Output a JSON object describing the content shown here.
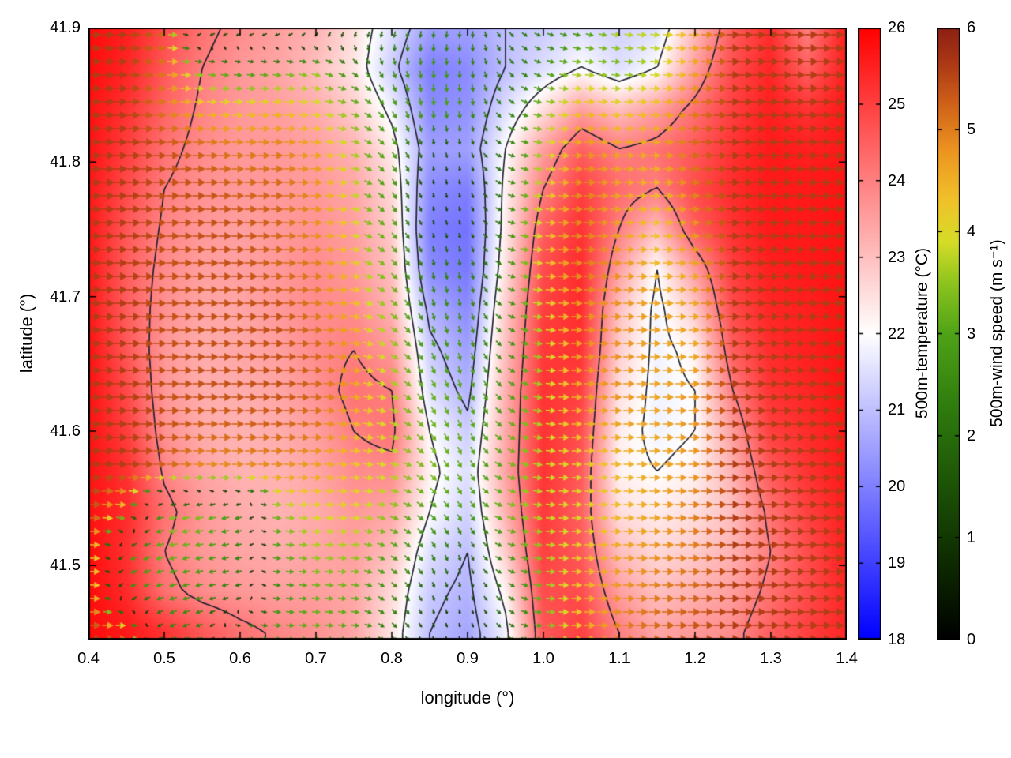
{
  "chart_data": {
    "type": "heatmap",
    "overlays": [
      "quiver",
      "contour"
    ],
    "title": "",
    "xlabel": "longitude (°)",
    "ylabel": "latitude (°)",
    "xlim": [
      0.4,
      1.4
    ],
    "ylim": [
      41.445,
      41.9
    ],
    "x_tick_labels": [
      "0.4",
      "0.5",
      "0.6",
      "0.7",
      "0.8",
      "0.9",
      "1.0",
      "1.1",
      "1.2",
      "1.3",
      "1.4"
    ],
    "y_tick_labels": [
      "41.5",
      "41.6",
      "41.7",
      "41.8",
      "41.9"
    ],
    "grid": {
      "lon_start": 0.4,
      "lon_step": 0.05,
      "ncols": 21,
      "lat_start": 41.9,
      "lat_step": -0.03,
      "nrows": 16
    },
    "contour_levels": [
      21,
      22,
      24
    ],
    "temperature": [
      [
        25.8,
        25.5,
        24.8,
        24.2,
        23.8,
        23.5,
        23.2,
        22.5,
        21.5,
        20.5,
        20.5,
        21.0,
        21.2,
        21.5,
        21.3,
        21.5,
        23.0,
        24.5,
        25.3,
        24.0,
        25.5
      ],
      [
        25.8,
        25.4,
        24.6,
        24.0,
        23.6,
        23.4,
        23.0,
        22.4,
        21.2,
        20.0,
        20.2,
        21.0,
        21.5,
        22.0,
        21.5,
        22.0,
        23.5,
        24.8,
        25.4,
        24.5,
        25.5
      ],
      [
        25.7,
        25.2,
        24.4,
        23.9,
        23.6,
        23.5,
        23.3,
        22.8,
        21.8,
        20.2,
        20.3,
        21.5,
        22.5,
        23.5,
        23.0,
        23.5,
        24.2,
        25.0,
        25.5,
        25.2,
        25.6
      ],
      [
        25.7,
        25.0,
        24.2,
        23.8,
        23.6,
        23.6,
        23.5,
        23.2,
        22.3,
        20.5,
        20.5,
        22.0,
        23.5,
        24.5,
        24.0,
        24.2,
        24.6,
        25.2,
        25.6,
        25.5,
        25.6
      ],
      [
        25.6,
        24.8,
        24.0,
        23.7,
        23.6,
        23.6,
        23.6,
        23.4,
        22.6,
        20.2,
        20.0,
        22.2,
        24.0,
        25.0,
        24.3,
        24.0,
        24.8,
        25.3,
        25.6,
        25.6,
        25.7
      ],
      [
        25.6,
        24.6,
        23.9,
        23.6,
        23.5,
        23.6,
        23.7,
        23.5,
        22.8,
        20.0,
        19.8,
        22.3,
        24.5,
        25.2,
        24.0,
        23.0,
        24.5,
        25.2,
        25.6,
        25.6,
        25.7
      ],
      [
        25.6,
        24.5,
        23.8,
        23.5,
        23.5,
        23.6,
        23.8,
        23.6,
        23.0,
        20.2,
        19.9,
        22.5,
        24.8,
        25.3,
        23.5,
        22.0,
        23.5,
        25.0,
        25.5,
        25.6,
        25.7
      ],
      [
        25.6,
        24.5,
        23.7,
        23.4,
        23.4,
        23.6,
        23.8,
        23.8,
        23.2,
        20.8,
        20.2,
        22.8,
        25.0,
        25.3,
        23.0,
        21.8,
        22.8,
        24.8,
        25.4,
        25.5,
        25.7
      ],
      [
        25.7,
        24.6,
        23.6,
        23.3,
        23.4,
        23.5,
        23.8,
        24.0,
        23.6,
        21.2,
        20.5,
        23.0,
        25.1,
        25.2,
        22.8,
        21.8,
        22.2,
        24.5,
        25.3,
        25.5,
        25.7
      ],
      [
        25.7,
        24.8,
        23.6,
        23.3,
        23.3,
        23.4,
        23.7,
        24.2,
        24.0,
        21.5,
        20.8,
        23.2,
        25.2,
        25.0,
        22.5,
        21.8,
        22.0,
        24.0,
        25.2,
        25.4,
        25.7
      ],
      [
        25.7,
        25.0,
        23.7,
        23.3,
        23.2,
        23.3,
        23.5,
        24.0,
        24.2,
        22.0,
        21.2,
        23.3,
        25.2,
        24.8,
        22.3,
        21.8,
        22.0,
        23.5,
        25.0,
        25.3,
        25.6
      ],
      [
        25.7,
        25.2,
        23.9,
        23.4,
        23.2,
        23.2,
        23.4,
        23.8,
        23.8,
        22.2,
        21.5,
        23.4,
        25.2,
        24.6,
        22.2,
        22.0,
        22.2,
        23.2,
        24.6,
        25.2,
        25.6
      ],
      [
        25.7,
        25.3,
        24.2,
        23.6,
        23.3,
        23.2,
        23.3,
        23.6,
        23.4,
        22.0,
        21.3,
        23.2,
        25.1,
        24.5,
        22.5,
        22.3,
        22.5,
        23.0,
        24.2,
        25.0,
        25.5
      ],
      [
        25.8,
        25.2,
        24.0,
        23.6,
        23.4,
        23.3,
        23.4,
        23.5,
        23.0,
        21.5,
        21.0,
        22.8,
        25.0,
        24.6,
        23.0,
        22.6,
        22.8,
        23.2,
        24.0,
        24.8,
        25.5
      ],
      [
        25.8,
        25.3,
        24.2,
        23.8,
        23.6,
        23.5,
        23.5,
        23.4,
        22.6,
        21.2,
        20.8,
        22.2,
        24.8,
        24.8,
        23.5,
        23.0,
        23.2,
        23.5,
        24.2,
        24.8,
        25.4
      ],
      [
        25.8,
        25.6,
        25.2,
        24.6,
        24.2,
        23.9,
        23.7,
        23.4,
        22.4,
        21.0,
        20.6,
        21.8,
        24.6,
        25.0,
        24.0,
        23.4,
        23.6,
        23.8,
        24.5,
        25.0,
        25.4
      ]
    ],
    "wind_u": [
      [
        5.6,
        5.6,
        5.2,
        -2.5,
        -2.0,
        -2.2,
        -1.5,
        -1.0,
        -0.8,
        -0.3,
        -0.3,
        1.2,
        2.2,
        2.6,
        3.8,
        3.8,
        4.6,
        5.6,
        5.6,
        5.6,
        5.6
      ],
      [
        5.6,
        5.6,
        5.0,
        3.2,
        2.6,
        3.0,
        3.4,
        2.0,
        0.8,
        0.2,
        0.2,
        1.2,
        2.6,
        3.6,
        3.2,
        3.8,
        4.6,
        5.6,
        5.6,
        5.6,
        5.6
      ],
      [
        5.6,
        5.6,
        5.0,
        4.4,
        4.2,
        4.4,
        4.0,
        3.2,
        1.5,
        0.3,
        0.4,
        1.8,
        3.4,
        4.4,
        4.2,
        4.4,
        5.0,
        5.6,
        5.6,
        5.6,
        5.6
      ],
      [
        5.6,
        5.6,
        5.4,
        5.2,
        5.0,
        5.0,
        4.6,
        3.6,
        1.8,
        0.3,
        0.3,
        2.0,
        3.8,
        4.8,
        4.6,
        4.6,
        5.2,
        5.6,
        5.6,
        5.6,
        5.6
      ],
      [
        5.6,
        5.6,
        5.4,
        5.4,
        5.2,
        5.2,
        4.8,
        3.8,
        1.6,
        0.2,
        0.2,
        2.2,
        4.0,
        5.0,
        4.6,
        4.4,
        5.0,
        5.6,
        5.6,
        5.6,
        5.6
      ],
      [
        5.6,
        5.6,
        5.4,
        5.4,
        5.4,
        5.2,
        4.8,
        4.0,
        2.0,
        0.3,
        0.3,
        2.4,
        4.2,
        5.0,
        4.6,
        4.2,
        4.8,
        5.6,
        5.6,
        5.6,
        5.6
      ],
      [
        5.6,
        5.6,
        5.4,
        5.4,
        5.4,
        5.2,
        5.0,
        4.2,
        2.4,
        0.5,
        0.4,
        2.4,
        4.2,
        5.0,
        4.8,
        4.4,
        4.6,
        5.6,
        5.6,
        5.6,
        5.6
      ],
      [
        5.6,
        5.6,
        5.4,
        5.4,
        5.4,
        5.4,
        5.0,
        4.4,
        2.8,
        0.8,
        0.5,
        2.2,
        4.0,
        4.8,
        4.8,
        4.6,
        4.6,
        5.6,
        5.6,
        5.6,
        5.6
      ],
      [
        5.6,
        5.6,
        5.4,
        5.4,
        5.4,
        5.4,
        5.2,
        4.6,
        3.2,
        1.2,
        0.6,
        2.0,
        3.8,
        4.8,
        4.8,
        4.6,
        4.6,
        5.6,
        5.6,
        5.6,
        5.6
      ],
      [
        5.6,
        5.6,
        5.4,
        5.4,
        5.4,
        5.4,
        5.2,
        4.6,
        3.6,
        1.6,
        0.8,
        2.2,
        3.8,
        4.6,
        4.8,
        4.6,
        4.8,
        5.6,
        5.6,
        5.6,
        5.6
      ],
      [
        5.6,
        5.6,
        5.4,
        5.2,
        5.2,
        5.2,
        5.0,
        4.4,
        3.8,
        2.0,
        1.0,
        2.6,
        3.8,
        4.4,
        4.6,
        4.6,
        4.8,
        5.6,
        5.6,
        5.6,
        5.6
      ],
      [
        5.6,
        5.6,
        5.2,
        4.8,
        4.8,
        4.8,
        4.6,
        4.2,
        3.8,
        2.6,
        1.4,
        3.0,
        3.8,
        4.0,
        4.4,
        4.6,
        4.8,
        5.6,
        5.6,
        5.6,
        5.6
      ],
      [
        5.6,
        3.8,
        -3.4,
        -3.4,
        -2.6,
        3.4,
        4.0,
        4.0,
        3.4,
        2.2,
        1.6,
        3.2,
        3.8,
        4.0,
        4.4,
        4.6,
        5.0,
        5.6,
        5.6,
        5.6,
        5.6
      ],
      [
        5.6,
        -2.6,
        -3.2,
        -3.0,
        -2.4,
        3.0,
        3.6,
        3.6,
        2.6,
        1.2,
        0.5,
        2.6,
        3.6,
        4.2,
        4.6,
        4.8,
        5.0,
        5.6,
        5.6,
        5.6,
        5.6
      ],
      [
        5.6,
        -2.2,
        -2.8,
        -2.6,
        -2.0,
        2.6,
        3.2,
        3.2,
        2.0,
        0.6,
        0.2,
        1.8,
        3.4,
        4.4,
        4.8,
        5.0,
        5.2,
        5.6,
        5.6,
        5.6,
        5.6
      ],
      [
        5.6,
        5.0,
        -2.2,
        -2.2,
        2.4,
        3.0,
        3.2,
        3.0,
        1.6,
        0.4,
        0.2,
        1.4,
        3.2,
        4.4,
        5.0,
        5.2,
        5.4,
        5.6,
        5.6,
        5.6,
        5.6
      ]
    ],
    "wind_v": [
      [
        0,
        0,
        0,
        -0.8,
        -0.8,
        -0.5,
        -1.0,
        -1.5,
        -2.0,
        -2.2,
        -2.2,
        -1.5,
        -1.0,
        -0.8,
        -0.5,
        -0.3,
        0,
        0,
        0,
        0,
        0
      ],
      [
        0,
        0,
        0,
        -0.3,
        -0.3,
        -0.3,
        -0.8,
        -1.5,
        -2.5,
        -2.8,
        -2.5,
        -1.8,
        -0.8,
        -0.3,
        -0.3,
        -0.2,
        0,
        0,
        0,
        0,
        0
      ],
      [
        0,
        0,
        0,
        0,
        0,
        0,
        -0.3,
        -1.0,
        -2.5,
        -3.0,
        -2.8,
        -1.5,
        -0.5,
        0,
        0,
        0,
        0,
        0,
        0,
        0,
        0
      ],
      [
        0,
        0,
        0,
        0,
        0,
        0,
        -0.2,
        -0.8,
        -2.5,
        -1.4,
        -1.6,
        -1.0,
        -0.3,
        0,
        0,
        0,
        0,
        0,
        0,
        0,
        0
      ],
      [
        0,
        0,
        0,
        0,
        0,
        0,
        -0.2,
        -0.6,
        -2.5,
        -1.0,
        -1.2,
        -1.0,
        -0.3,
        0,
        0,
        0,
        0,
        0,
        0,
        0,
        0
      ],
      [
        0,
        0,
        0,
        0,
        0,
        0,
        -0.2,
        -0.5,
        -2.5,
        -1.2,
        -1.4,
        -0.8,
        -0.2,
        0,
        0,
        0,
        0,
        0,
        0,
        0,
        0
      ],
      [
        0,
        0,
        0,
        0,
        0,
        0,
        -0.2,
        -0.5,
        -2.2,
        -2.2,
        -2.4,
        -1.0,
        -0.2,
        0,
        0,
        0,
        0,
        0,
        0,
        0,
        0
      ],
      [
        0,
        0,
        0,
        0,
        0,
        0,
        -0.2,
        -0.5,
        -2.0,
        -2.4,
        -2.6,
        -1.2,
        -0.3,
        0,
        0,
        0,
        0,
        0,
        0,
        0,
        0
      ],
      [
        0,
        0,
        0,
        0,
        0,
        0,
        -0.2,
        -0.5,
        -1.8,
        -2.6,
        -2.8,
        -1.5,
        -0.3,
        0,
        0,
        0,
        0,
        0,
        0,
        0,
        0
      ],
      [
        0,
        0,
        0,
        0,
        0,
        0,
        -0.2,
        -0.4,
        -1.2,
        -2.8,
        -3.0,
        -1.8,
        -0.4,
        0,
        0,
        0,
        0,
        0,
        0,
        0,
        0
      ],
      [
        0,
        0,
        0,
        0,
        0,
        0,
        -0.2,
        -0.4,
        -0.8,
        -2.6,
        -3.0,
        -1.8,
        -0.4,
        0,
        0,
        0,
        0,
        0,
        0,
        0,
        0
      ],
      [
        0,
        0,
        0,
        0,
        0,
        0,
        -0.2,
        -0.3,
        -0.6,
        -2.2,
        -2.8,
        -1.2,
        -0.4,
        0,
        0,
        0,
        0,
        0,
        0,
        0,
        0
      ],
      [
        0,
        -0.5,
        -0.5,
        -0.5,
        -0.5,
        -0.3,
        -0.2,
        -0.3,
        -0.8,
        -2.0,
        -2.6,
        -1.0,
        -0.3,
        0,
        0,
        0,
        0,
        0,
        0,
        0,
        0
      ],
      [
        0,
        -1.0,
        -0.8,
        -0.6,
        -0.5,
        -0.3,
        -0.2,
        -0.3,
        -1.5,
        -2.2,
        -1.8,
        -1.0,
        -0.3,
        0,
        0,
        0,
        0,
        0,
        0,
        0,
        0
      ],
      [
        0,
        -1.2,
        -0.8,
        -0.6,
        -0.5,
        -0.3,
        -0.2,
        -0.3,
        -1.8,
        -1.5,
        -1.2,
        -1.5,
        -0.3,
        0,
        0,
        0,
        0,
        0,
        0,
        0,
        0
      ],
      [
        0,
        0,
        -1.0,
        -0.8,
        -0.4,
        -0.3,
        -0.2,
        -0.3,
        -1.5,
        -1.0,
        -0.8,
        -1.2,
        -0.3,
        0,
        0,
        0,
        0,
        0,
        0,
        0,
        0
      ]
    ],
    "temperature_colorbar": {
      "label": "500m-temperature (°C)",
      "min": 18,
      "max": 26,
      "ticks": [
        "18",
        "19",
        "20",
        "21",
        "22",
        "23",
        "24",
        "25",
        "26"
      ],
      "colormap": [
        [
          18,
          "#0000ff"
        ],
        [
          22,
          "#ffffff"
        ],
        [
          26,
          "#ff0000"
        ]
      ]
    },
    "wind_colorbar": {
      "label": "500m-wind speed (m s⁻¹)",
      "min": 0,
      "max": 6,
      "ticks": [
        "0",
        "1",
        "2",
        "3",
        "4",
        "5",
        "6"
      ],
      "colormap": [
        [
          0,
          "#000000"
        ],
        [
          0.7,
          "#0c2800"
        ],
        [
          1.5,
          "#1c5206"
        ],
        [
          2.3,
          "#2f7d0e"
        ],
        [
          3.0,
          "#4fa317"
        ],
        [
          3.5,
          "#8ec41e"
        ],
        [
          3.9,
          "#d6dc26"
        ],
        [
          4.3,
          "#f0c22a"
        ],
        [
          4.8,
          "#ec9420"
        ],
        [
          5.3,
          "#cc5c18"
        ],
        [
          5.7,
          "#a83414"
        ],
        [
          6.0,
          "#8c2014"
        ]
      ]
    },
    "contour_color": "#20202e"
  }
}
